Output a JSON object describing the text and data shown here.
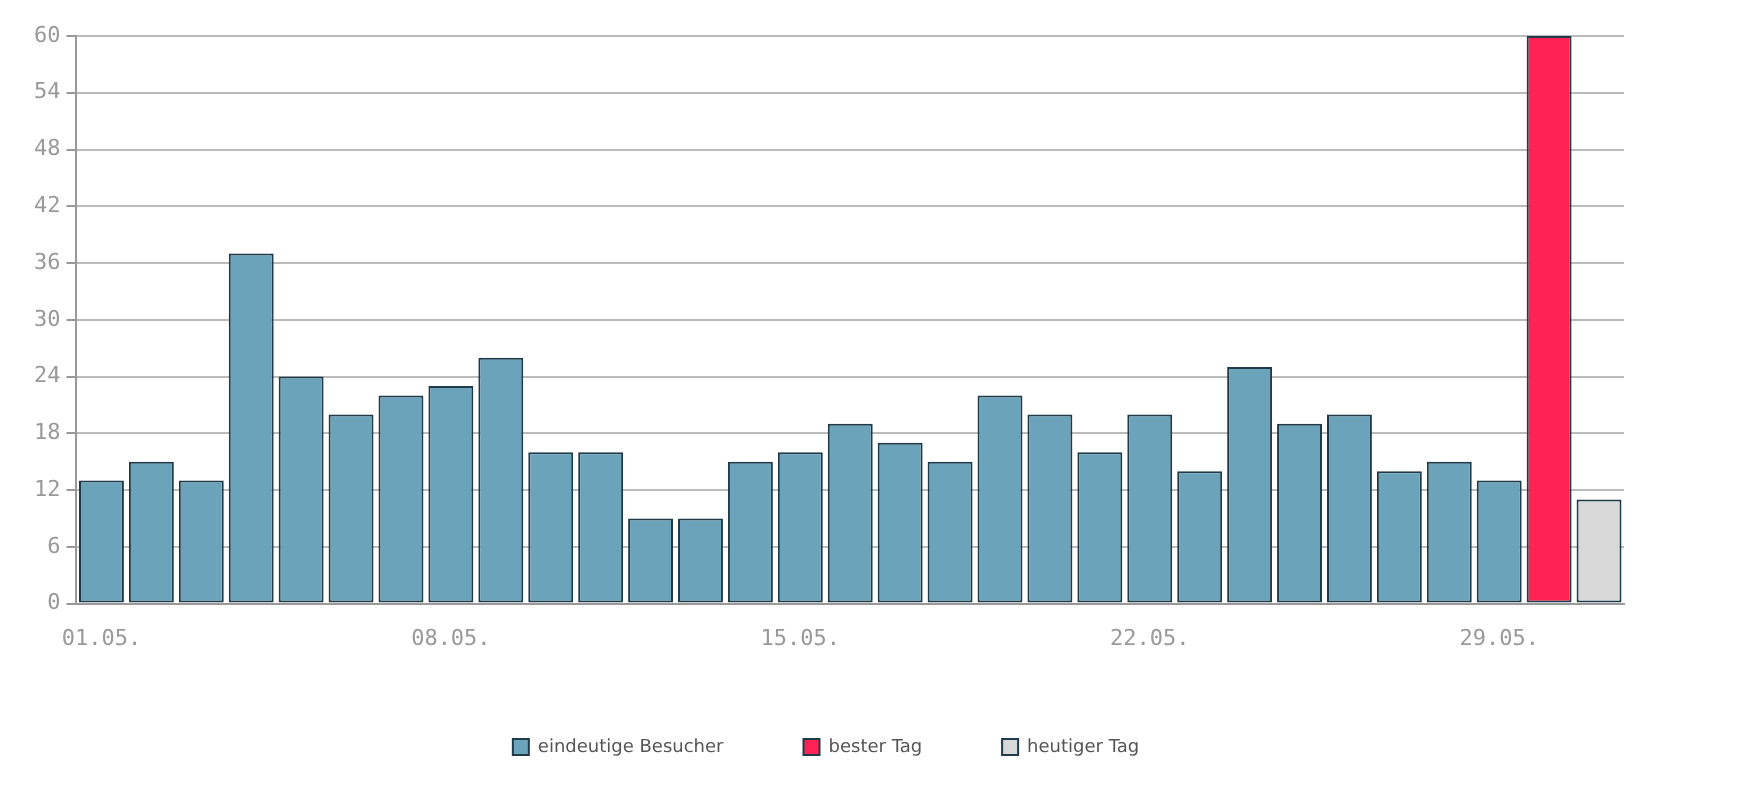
{
  "chart_data": {
    "type": "bar",
    "stacked": true,
    "categories": [
      "01.05.",
      null,
      null,
      null,
      null,
      null,
      null,
      "08.05.",
      null,
      null,
      null,
      null,
      null,
      null,
      "15.05.",
      null,
      null,
      null,
      null,
      null,
      null,
      "22.05.",
      null,
      null,
      null,
      null,
      null,
      null,
      "29.05.",
      null,
      null
    ],
    "series": [
      {
        "name": "eindeutige Besucher",
        "color": "#6aa3ba",
        "values": [
          13,
          15,
          13,
          37,
          24,
          20,
          22,
          23,
          26,
          16,
          16,
          9,
          9,
          15,
          16,
          19,
          17,
          15,
          22,
          20,
          16,
          20,
          14,
          25,
          19,
          20,
          14,
          15,
          13,
          null,
          null
        ]
      },
      {
        "name": "bester Tag",
        "color": "#ff2255",
        "values": [
          null,
          null,
          null,
          null,
          null,
          null,
          null,
          null,
          null,
          null,
          null,
          null,
          null,
          null,
          null,
          null,
          null,
          null,
          null,
          null,
          null,
          null,
          null,
          null,
          null,
          null,
          null,
          null,
          null,
          60,
          null
        ]
      },
      {
        "name": "heutiger Tag",
        "color": "#d8d8d8",
        "values": [
          null,
          null,
          null,
          null,
          null,
          null,
          null,
          null,
          null,
          null,
          null,
          null,
          null,
          null,
          null,
          null,
          null,
          null,
          null,
          null,
          null,
          null,
          null,
          null,
          null,
          null,
          null,
          null,
          null,
          null,
          11
        ]
      }
    ],
    "ylim": [
      0,
      60
    ],
    "yticks": [
      0,
      6,
      12,
      18,
      24,
      30,
      36,
      42,
      48,
      54,
      60
    ],
    "grid": "y",
    "legend": "bottom"
  }
}
